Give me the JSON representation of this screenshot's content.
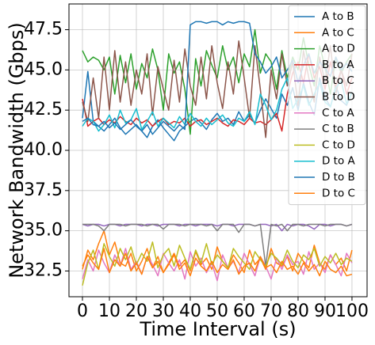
{
  "chart_data": {
    "type": "line",
    "xlabel": "Time Interval (s)",
    "ylabel": "Network Bandwidth (Gbps)",
    "x": [
      0,
      2,
      4,
      6,
      8,
      10,
      12,
      14,
      16,
      18,
      20,
      22,
      24,
      26,
      28,
      30,
      32,
      34,
      36,
      38,
      40,
      42,
      44,
      46,
      48,
      50,
      52,
      54,
      56,
      58,
      60,
      62,
      64,
      66,
      68,
      70,
      72,
      74,
      76,
      78,
      80,
      82,
      84,
      86,
      88,
      90,
      92,
      94,
      96,
      98,
      100
    ],
    "xlim": [
      -5,
      105.6
    ],
    "ylim": [
      30.9,
      49.1
    ],
    "xticks": [
      0,
      10,
      20,
      30,
      40,
      50,
      60,
      70,
      80,
      90,
      100
    ],
    "yticks": [
      32.5,
      {
        "value": 35,
        "label": "35.0"
      },
      37.5,
      {
        "value": 40,
        "label": "40.0"
      },
      42.5,
      {
        "value": 45,
        "label": "45.0"
      },
      47.5
    ],
    "grid": true,
    "legend": "upper right",
    "series": [
      {
        "name": "A to B",
        "color": "#1f77b4",
        "values": [
          42.0,
          44.9,
          41.8,
          41.5,
          41.2,
          41.6,
          42.0,
          41.4,
          41.0,
          41.3,
          41.6,
          41.2,
          40.8,
          41.5,
          41.9,
          41.4,
          41.0,
          40.6,
          41.2,
          41.5,
          41.8,
          42.0,
          41.7,
          41.3,
          41.9,
          42.3,
          41.8,
          42.0,
          41.6,
          42.4,
          41.8,
          42.2,
          41.7,
          42.5,
          43.2,
          42.6,
          42.0,
          43.5,
          42.8,
          43.9,
          42.5,
          44.2,
          43.0,
          42.2,
          44.5,
          43.3,
          42.7,
          44.0,
          43.1,
          42.8,
          43.6
        ]
      },
      {
        "name": "A to C",
        "color": "#ff7f0e",
        "values": [
          32.6,
          33.8,
          33.2,
          34.2,
          35.0,
          33.5,
          34.3,
          33.0,
          32.8,
          33.6,
          32.5,
          33.1,
          33.9,
          32.7,
          33.4,
          32.4,
          33.0,
          33.6,
          32.8,
          33.2,
          32.5,
          33.7,
          32.9,
          33.3,
          32.6,
          34.0,
          33.1,
          32.7,
          33.5,
          33.0,
          32.4,
          33.8,
          32.9,
          33.3,
          32.6,
          33.9,
          33.0,
          32.8,
          33.4,
          32.5,
          33.6,
          33.1,
          32.7,
          34.1,
          33.0,
          32.6,
          33.5,
          32.9,
          33.3,
          32.5,
          33.8
        ]
      },
      {
        "name": "A to D",
        "color": "#2ca02c",
        "values": [
          46.2,
          45.5,
          45.8,
          45.6,
          45.0,
          45.8,
          43.5,
          45.9,
          44.2,
          46.0,
          43.8,
          45.4,
          44.5,
          46.3,
          45.0,
          42.5,
          46.0,
          44.8,
          45.5,
          43.8,
          41.0,
          45.7,
          44.0,
          46.2,
          45.3,
          44.5,
          46.5,
          45.0,
          45.8,
          44.2,
          46.0,
          45.2,
          47.5,
          44.8,
          46.0,
          45.5,
          43.8,
          46.2,
          44.5,
          45.8,
          45.0,
          47.0,
          45.3,
          44.0,
          46.5,
          45.2,
          43.5,
          45.8,
          44.8,
          45.5,
          46.0
        ]
      },
      {
        "name": "B to A",
        "color": "#d62728",
        "values": [
          43.2,
          41.5,
          41.8,
          42.0,
          41.6,
          41.9,
          41.7,
          42.1,
          41.8,
          41.6,
          42.0,
          41.7,
          41.9,
          41.5,
          41.8,
          42.0,
          41.6,
          41.8,
          41.7,
          42.0,
          41.5,
          41.8,
          41.9,
          41.6,
          41.8,
          42.0,
          41.7,
          41.5,
          41.9,
          41.8,
          41.6,
          42.0,
          41.7,
          41.8,
          41.6,
          41.9,
          42.3,
          41.2,
          43.5,
          44.8,
          45.5,
          44.2,
          46.0,
          44.5,
          45.2,
          43.8,
          45.5,
          44.0,
          45.0,
          43.5,
          44.5
        ]
      },
      {
        "name": "B to C",
        "color": "#9467bd",
        "values": [
          35.4,
          35.3,
          35.4,
          35.4,
          35.3,
          35.4,
          35.4,
          35.3,
          35.4,
          35.4,
          35.4,
          35.3,
          35.4,
          35.4,
          35.3,
          35.4,
          35.4,
          35.4,
          35.3,
          35.4,
          35.4,
          35.3,
          35.4,
          35.4,
          35.4,
          35.3,
          35.4,
          35.4,
          35.3,
          35.4,
          35.4,
          35.4,
          35.3,
          35.4,
          35.4,
          35.3,
          35.4,
          35.0,
          35.4,
          35.3,
          35.4,
          35.4,
          35.3,
          35.1,
          35.4,
          35.4,
          35.3,
          35.4,
          35.4,
          35.3,
          35.4
        ]
      },
      {
        "name": "B to D",
        "color": "#8c564b",
        "values": [
          43.0,
          41.8,
          44.5,
          42.0,
          45.8,
          42.5,
          46.2,
          43.0,
          45.5,
          42.8,
          45.0,
          43.5,
          46.0,
          42.2,
          45.2,
          43.8,
          42.5,
          45.6,
          43.0,
          46.3,
          44.0,
          42.8,
          45.8,
          43.2,
          46.5,
          44.2,
          42.6,
          45.5,
          43.5,
          46.8,
          44.5,
          42.0,
          46.5,
          43.8,
          40.8,
          45.0,
          43.2,
          46.0,
          44.0,
          45.5,
          42.8,
          46.2,
          44.5,
          43.0,
          45.8,
          44.2,
          46.5,
          43.5,
          45.0,
          44.0,
          46.0
        ]
      },
      {
        "name": "C to A",
        "color": "#e377c2",
        "values": [
          32.0,
          33.2,
          32.5,
          33.8,
          33.0,
          32.4,
          33.5,
          32.8,
          33.9,
          32.6,
          33.1,
          32.3,
          33.4,
          32.9,
          32.2,
          33.6,
          33.0,
          32.5,
          33.2,
          32.0,
          33.7,
          32.8,
          33.3,
          32.4,
          33.0,
          31.9,
          33.5,
          32.7,
          33.1,
          32.4,
          33.6,
          32.9,
          32.2,
          33.4,
          32.8,
          32.0,
          33.3,
          32.6,
          33.5,
          32.9,
          33.1,
          32.3,
          33.7,
          32.6,
          33.0,
          32.4,
          33.5,
          32.9,
          32.2,
          33.6,
          33.0
        ]
      },
      {
        "name": "C to B",
        "color": "#7f7f7f",
        "values": [
          35.4,
          35.4,
          35.4,
          35.3,
          35.0,
          35.4,
          35.4,
          35.4,
          35.3,
          35.4,
          35.4,
          35.4,
          35.3,
          35.4,
          35.4,
          35.1,
          35.4,
          35.4,
          35.4,
          35.3,
          35.4,
          35.4,
          35.4,
          35.3,
          35.4,
          35.0,
          35.4,
          35.4,
          35.4,
          34.9,
          35.4,
          35.4,
          35.3,
          35.4,
          32.8,
          35.4,
          35.3,
          35.4,
          35.0,
          35.4,
          35.4,
          35.3,
          35.4,
          35.4,
          35.4,
          35.3,
          35.4,
          35.4,
          35.4,
          35.3,
          35.4
        ]
      },
      {
        "name": "C to D",
        "color": "#bcbd22",
        "values": [
          31.6,
          33.0,
          33.8,
          32.6,
          34.2,
          33.4,
          32.8,
          33.9,
          33.2,
          34.0,
          32.9,
          33.6,
          33.1,
          34.3,
          32.7,
          33.5,
          33.9,
          32.8,
          34.1,
          33.3,
          32.6,
          33.8,
          33.0,
          34.2,
          32.9,
          33.5,
          33.1,
          32.7,
          33.9,
          33.4,
          33.0,
          32.6,
          33.7,
          33.2,
          32.8,
          33.6,
          33.3,
          32.9,
          33.8,
          33.1,
          32.7,
          33.5,
          33.2,
          33.9,
          32.8,
          33.4,
          33.0,
          33.6,
          32.9,
          33.3,
          33.1
        ]
      },
      {
        "name": "D to A",
        "color": "#17becf",
        "values": [
          41.5,
          42.0,
          41.8,
          41.2,
          41.6,
          42.2,
          41.4,
          42.5,
          41.7,
          41.9,
          42.6,
          41.3,
          41.8,
          42.4,
          41.5,
          42.0,
          41.7,
          41.4,
          42.1,
          41.6,
          42.3,
          41.8,
          41.5,
          42.0,
          41.6,
          41.9,
          42.2,
          41.7,
          41.5,
          42.0,
          41.8,
          42.4,
          41.6,
          43.5,
          42.8,
          41.9,
          42.5,
          43.8,
          44.5,
          42.6,
          43.2,
          44.0,
          42.8,
          43.5,
          44.2,
          43.0,
          42.7,
          43.9,
          44.3,
          42.9,
          43.6
        ]
      },
      {
        "name": "D to B",
        "color": "#1f77b4",
        "values": [
          41.8,
          42.0,
          41.6,
          41.5,
          41.8,
          41.4,
          41.7,
          41.3,
          41.6,
          41.9,
          41.5,
          41.2,
          41.6,
          41.0,
          41.4,
          41.8,
          41.5,
          41.2,
          41.6,
          41.3,
          47.8,
          48.0,
          48.0,
          47.9,
          48.0,
          48.0,
          47.8,
          48.0,
          47.9,
          48.0,
          48.0,
          47.9,
          46.0,
          45.5,
          44.8,
          45.2,
          45.8,
          44.5,
          45.0,
          45.6,
          44.2,
          45.3,
          46.0,
          44.8,
          45.5,
          45.1,
          44.6,
          45.8,
          45.0,
          45.4,
          44.9
        ]
      },
      {
        "name": "D to C",
        "color": "#ff7f0e",
        "values": [
          32.8,
          33.5,
          33.0,
          32.6,
          33.9,
          32.4,
          33.2,
          32.8,
          33.6,
          32.5,
          33.0,
          32.3,
          33.4,
          32.7,
          33.1,
          32.4,
          32.9,
          33.5,
          32.6,
          33.0,
          32.2,
          33.3,
          32.8,
          32.5,
          33.1,
          32.4,
          32.9,
          32.6,
          33.2,
          32.3,
          32.8,
          33.0,
          32.5,
          33.4,
          32.7,
          32.9,
          32.4,
          33.1,
          32.6,
          32.8,
          32.3,
          33.0,
          32.5,
          32.9,
          32.2,
          33.1,
          32.6,
          32.4,
          32.8,
          32.2,
          32.3
        ]
      }
    ]
  }
}
